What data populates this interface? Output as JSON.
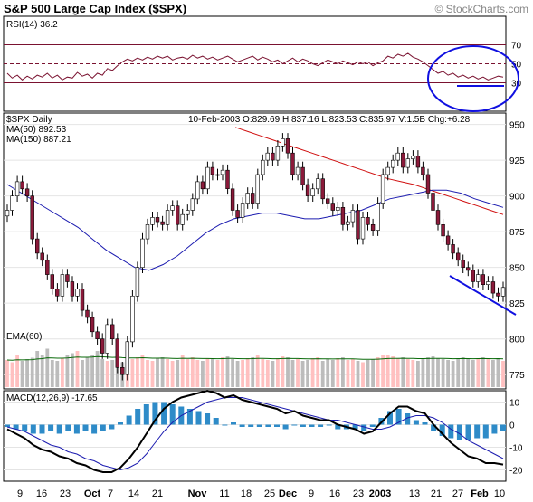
{
  "title": "S&P 500 Large Cap Index ($SPX)",
  "credit": "© StockCharts.com",
  "colors": {
    "rsi_line": "#7a1230",
    "up_candle": "#ffffff",
    "down_candle": "#8b1a3a",
    "ma50": "#1c1cb0",
    "ma150": "#d01010",
    "ema": "#0a6a0a",
    "volume_up": "#ffc0c0",
    "volume_down": "#bcbcbc",
    "macd_line": "#000000",
    "signal_line": "#1c1cb0",
    "histogram": "#2e8bc8",
    "annotation": "#1010e0"
  },
  "chart_data": [
    {
      "type": "line",
      "name": "RSI panel",
      "label": "RSI(14) 36.2",
      "ylim": [
        0,
        100
      ],
      "y_ticks": [
        70,
        50,
        30
      ],
      "reference_lines": [
        70,
        50,
        30
      ],
      "values": [
        40,
        35,
        38,
        33,
        37,
        34,
        38,
        36,
        40,
        35,
        38,
        33,
        36,
        35,
        41,
        37,
        39,
        35,
        40,
        38,
        45,
        43,
        48,
        52,
        55,
        53,
        56,
        54,
        57,
        55,
        58,
        56,
        58,
        54,
        56,
        57,
        55,
        59,
        56,
        58,
        55,
        57,
        54,
        56,
        58,
        55,
        52,
        54,
        56,
        58,
        54,
        57,
        55,
        52,
        54,
        50,
        53,
        56,
        52,
        55,
        53,
        50,
        48,
        51,
        54,
        52,
        50,
        53,
        51,
        49,
        52,
        50,
        52,
        48,
        51,
        53,
        58,
        56,
        60,
        58,
        61,
        57,
        55,
        52,
        48,
        44,
        40,
        42,
        38,
        40,
        36,
        38,
        35,
        37,
        34,
        36,
        33,
        35,
        37,
        36
      ]
    },
    {
      "type": "candlestick",
      "name": "Price panel",
      "label": "$SPX Daily",
      "header": "10-Feb-2003 O:829.69 H:837.16 L:823.53 C:835.97 V:1.5B Chg:+6.28",
      "ylim": [
        765,
        958
      ],
      "y_ticks": [
        950,
        925,
        900,
        875,
        850,
        825,
        800,
        775
      ],
      "x_ticks": [
        "9",
        "16",
        "23",
        "Oct",
        "7",
        "14",
        "21",
        "Nov",
        "11",
        "18",
        "25",
        "Dec",
        "9",
        "16",
        "23",
        "2003",
        "13",
        "21",
        "27",
        "Feb",
        "10"
      ],
      "closes": [
        890,
        900,
        910,
        905,
        900,
        870,
        860,
        855,
        845,
        835,
        830,
        845,
        840,
        830,
        835,
        820,
        815,
        805,
        800,
        790,
        810,
        800,
        780,
        775,
        798,
        830,
        850,
        870,
        880,
        885,
        882,
        880,
        890,
        893,
        880,
        887,
        890,
        898,
        910,
        905,
        920,
        915,
        915,
        918,
        905,
        890,
        885,
        895,
        902,
        895,
        915,
        925,
        930,
        925,
        935,
        940,
        930,
        915,
        920,
        908,
        900,
        905,
        912,
        898,
        895,
        890,
        892,
        880,
        882,
        890,
        870,
        885,
        880,
        876,
        895,
        915,
        920,
        925,
        930,
        920,
        926,
        928,
        920,
        915,
        902,
        890,
        880,
        872,
        866,
        860,
        855,
        850,
        848,
        840,
        845,
        838,
        840,
        832,
        830,
        836
      ],
      "ma50": {
        "label": "MA(50) 892.53",
        "values": [
          908,
          902,
          896,
          890,
          884,
          878,
          870,
          862,
          856,
          850,
          848,
          852,
          858,
          866,
          874,
          880,
          884,
          886,
          888,
          888,
          886,
          884,
          884,
          886,
          888,
          890,
          894,
          898,
          900,
          902,
          904,
          904,
          902,
          898,
          895,
          892
        ]
      },
      "ma150": {
        "label": "MA(150) 887.21",
        "values": [
          948,
          945,
          942,
          939,
          936,
          933,
          930,
          927,
          924,
          921,
          918,
          915,
          912,
          910,
          908,
          905,
          902,
          899,
          896,
          893,
          890,
          887
        ]
      },
      "ema60_volume": {
        "label": "EMA(60)"
      },
      "volume": [
        60,
        55,
        70,
        58,
        62,
        65,
        80,
        72,
        85,
        60,
        58,
        65,
        70,
        75,
        80,
        60,
        65,
        72,
        80,
        62,
        58,
        60,
        70,
        55,
        58,
        62,
        66,
        70,
        60,
        58,
        64,
        66,
        62,
        58,
        60,
        70,
        62,
        66,
        60,
        58,
        64,
        62,
        60,
        66,
        68,
        62,
        58,
        60,
        64,
        66,
        70,
        62,
        60,
        58,
        64,
        68,
        66,
        60,
        62,
        58,
        60,
        64,
        66,
        58,
        62,
        60,
        64,
        66,
        60,
        62,
        58,
        55,
        60,
        62,
        66,
        70,
        72,
        68,
        64,
        66,
        62,
        60,
        58,
        64,
        66,
        68,
        64,
        62,
        60,
        58,
        64,
        66,
        62,
        60,
        64,
        66,
        62,
        60,
        64,
        58
      ]
    },
    {
      "type": "bar",
      "name": "MACD panel",
      "label": "MACD(12,26,9) -17.65",
      "ylim": [
        -25,
        15
      ],
      "y_ticks": [
        10,
        0,
        -10,
        -20
      ],
      "macd": [
        -2,
        -4,
        -6,
        -9,
        -11,
        -12,
        -14,
        -15,
        -17,
        -18,
        -20,
        -21,
        -21,
        -19,
        -15,
        -10,
        -4,
        2,
        7,
        10,
        12,
        13,
        14,
        15,
        14,
        12,
        13,
        11,
        10,
        9,
        8,
        7,
        5,
        6,
        4,
        3,
        2,
        2,
        0,
        -1,
        -2,
        -4,
        -3,
        1,
        5,
        8,
        8,
        6,
        5,
        0,
        -4,
        -8,
        -11,
        -14,
        -15,
        -17,
        -17,
        -17.65
      ],
      "signal": [
        -1,
        -2,
        -3,
        -5,
        -7,
        -9,
        -10,
        -12,
        -13,
        -15,
        -16,
        -18,
        -19,
        -20,
        -19,
        -17,
        -13,
        -8,
        -3,
        1,
        4,
        6,
        8,
        10,
        11,
        12,
        12,
        12,
        11,
        10,
        9,
        8,
        7,
        6,
        5,
        4,
        3,
        2,
        2,
        1,
        0,
        -1,
        -2,
        -2,
        -1,
        1,
        3,
        4,
        4,
        3,
        1,
        -2,
        -4,
        -7,
        -9,
        -11,
        -13,
        -15
      ]
    }
  ]
}
